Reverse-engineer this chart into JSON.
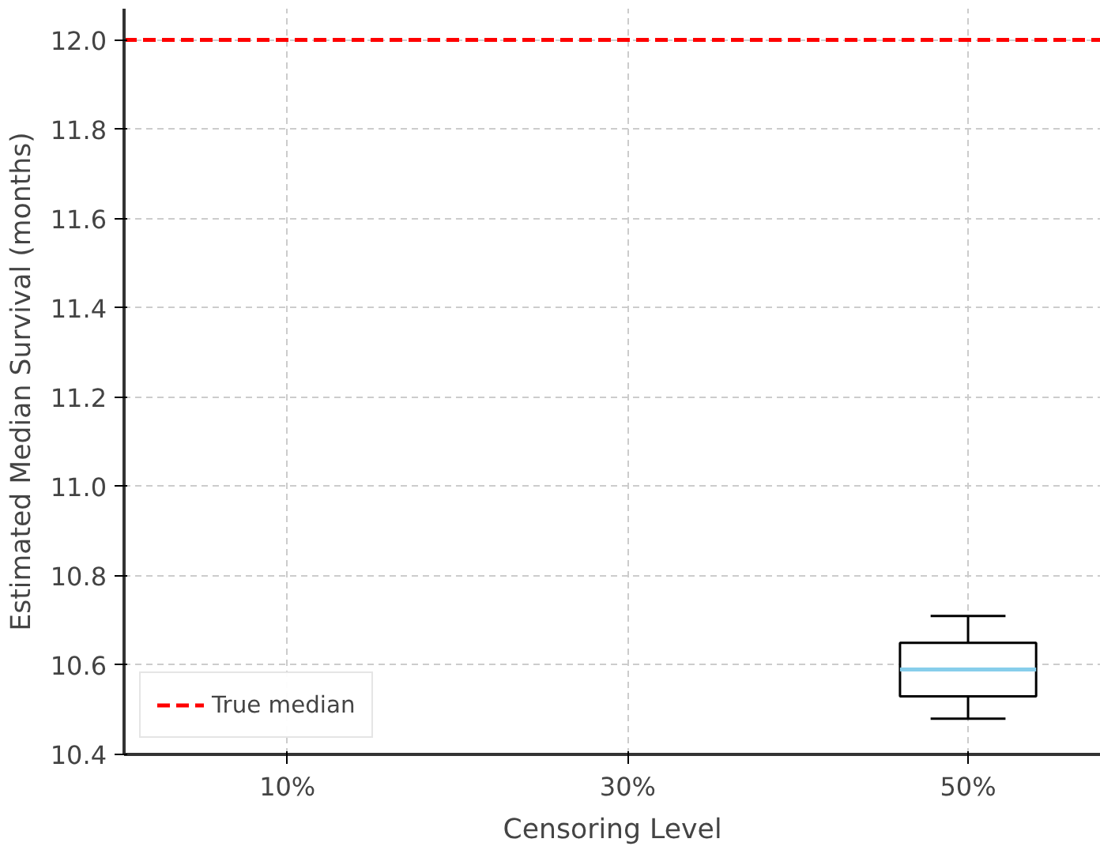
{
  "chart_data": {
    "type": "box",
    "xlabel": "Censoring Level",
    "ylabel": "Estimated Median Survival (months)",
    "categories": [
      "10%",
      "30%",
      "50%"
    ],
    "boxes": [
      null,
      null,
      {
        "low": 10.48,
        "q1": 10.53,
        "median": 10.59,
        "q3": 10.65,
        "high": 10.71
      }
    ],
    "ylim": [
      10.4,
      12.07
    ],
    "yticks": [
      {
        "value": 10.4,
        "label": "10.4"
      },
      {
        "value": 10.6,
        "label": "10.6"
      },
      {
        "value": 10.8,
        "label": "10.8"
      },
      {
        "value": 11.0,
        "label": "11.0"
      },
      {
        "value": 11.2,
        "label": "11.2"
      },
      {
        "value": 11.4,
        "label": "11.4"
      },
      {
        "value": 11.6,
        "label": "11.6"
      },
      {
        "value": 11.8,
        "label": "11.8"
      },
      {
        "value": 12.0,
        "label": "12.0"
      }
    ],
    "ref_lines": [
      {
        "axis": "y",
        "value": 12.0,
        "label": "True median",
        "color": "#ff0000",
        "line_style": "dashed"
      }
    ],
    "grid": true,
    "legend": "bottom left"
  }
}
